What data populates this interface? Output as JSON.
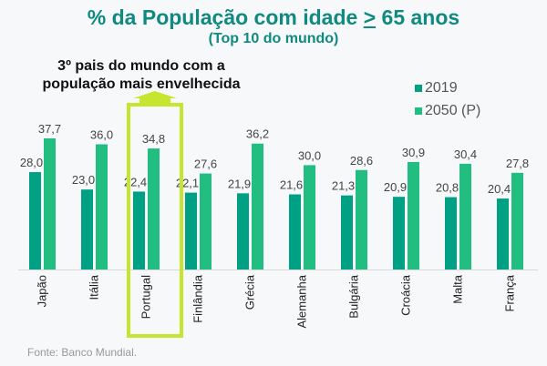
{
  "chart_data": {
    "type": "bar",
    "title_prefix": "% da População com idade ",
    "title_symbol": ">",
    "title_suffix": " 65 anos",
    "subtitle": "(Top 10 do mundo)",
    "annotation": "3º pais do mundo com a população mais envelhecida",
    "highlight_category": "Portugal",
    "categories": [
      "Japão",
      "Itália",
      "Portugal",
      "Finlândia",
      "Grécia",
      "Alemanha",
      "Bulgária",
      "Croácia",
      "Malta",
      "França"
    ],
    "series": [
      {
        "name": "2019",
        "color": "#00a085",
        "values": [
          28.0,
          23.0,
          22.4,
          22.1,
          21.9,
          21.6,
          21.3,
          20.9,
          20.8,
          20.4
        ],
        "labels": [
          "28,0",
          "23,0",
          "22,4",
          "22,1",
          "21,9",
          "21,6",
          "21,3",
          "20,9",
          "20,8",
          "20,4"
        ]
      },
      {
        "name": "2050 (P)",
        "color": "#22bd80",
        "values": [
          37.7,
          36.0,
          34.8,
          27.6,
          36.2,
          30.0,
          28.6,
          30.9,
          30.4,
          27.8
        ],
        "labels": [
          "37,7",
          "36,0",
          "34,8",
          "27,6",
          "36,2",
          "30,0",
          "28,6",
          "30,9",
          "30,4",
          "27,8"
        ]
      }
    ],
    "ylim": [
      0,
      40
    ],
    "legend": "top-right",
    "source": "Fonte: Banco Mundial.",
    "highlight_color": "#c6e52f"
  }
}
